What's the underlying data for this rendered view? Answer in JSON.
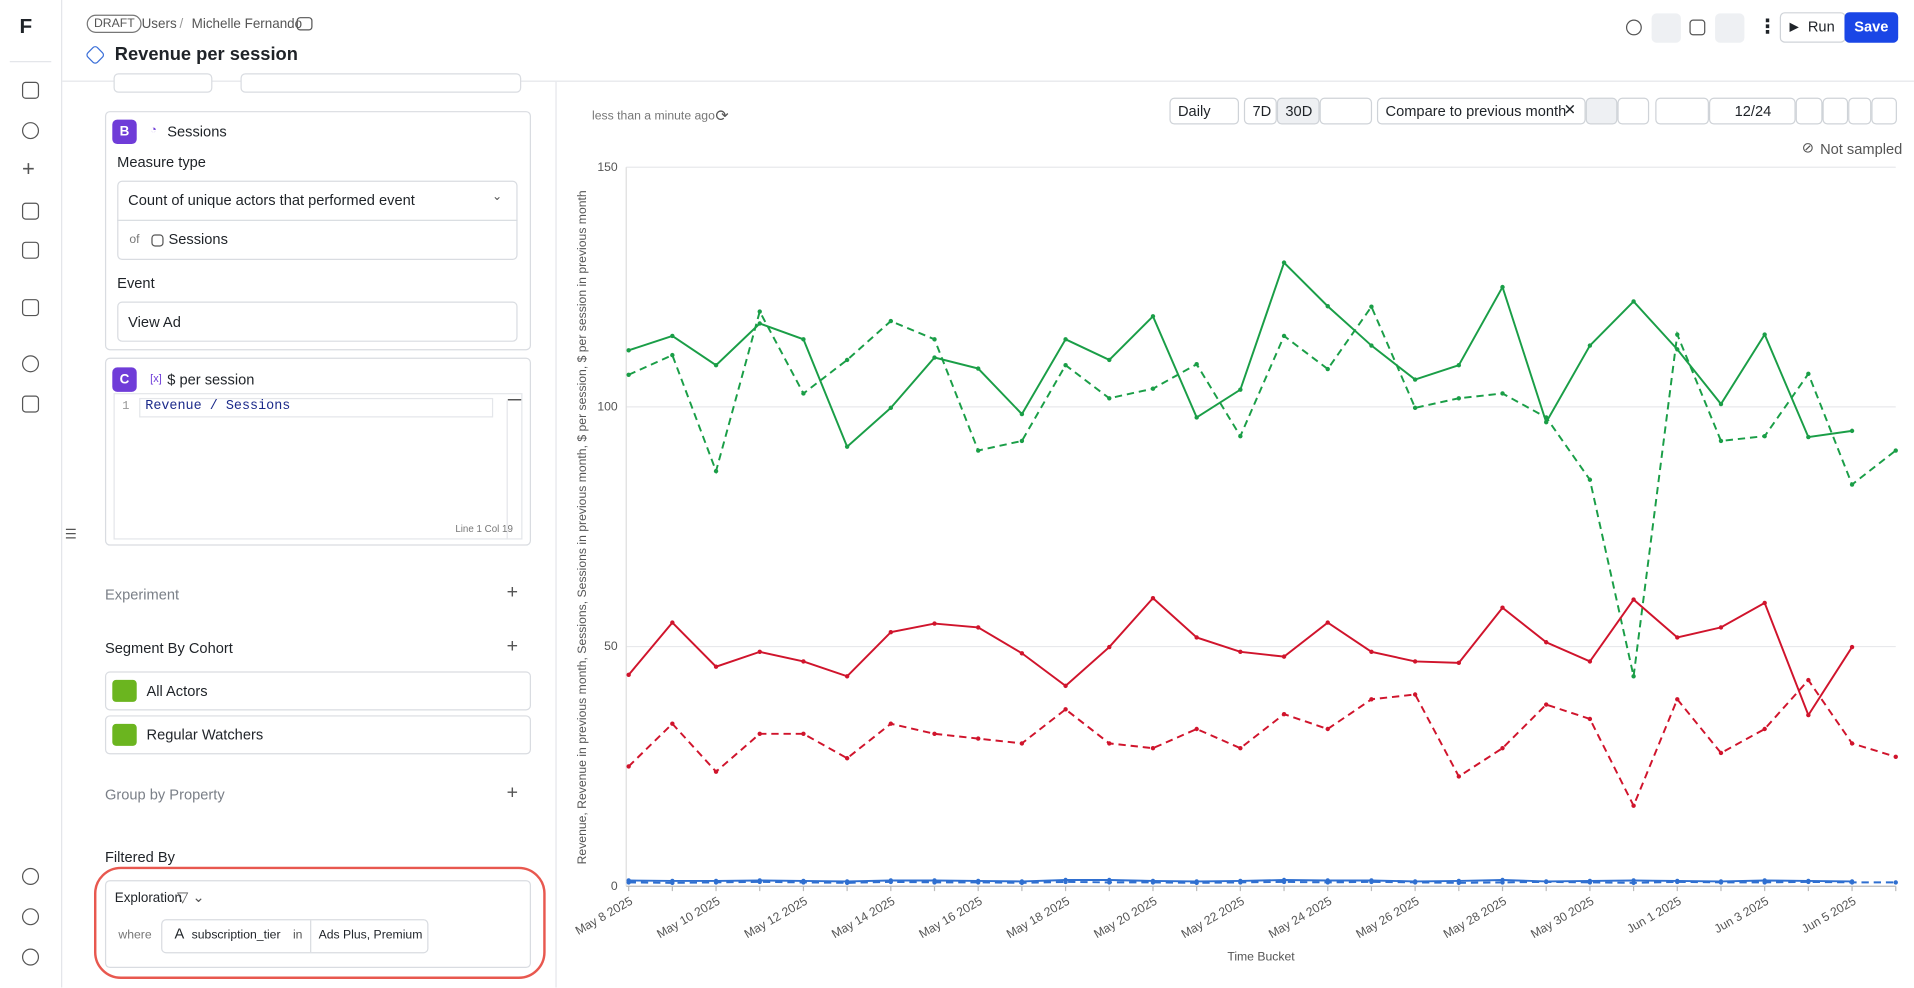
{
  "header": {
    "draft": "DRAFT",
    "breadcrumb": [
      "Users",
      "Michelle Fernando"
    ],
    "title": "Revenue per session",
    "run": "Run",
    "save": "Save"
  },
  "rail": {
    "logo": "F"
  },
  "panel": {
    "measure_b": {
      "letter": "B",
      "name": "Sessions",
      "measure_type_label": "Measure type",
      "measure_type": "Count of unique actors that performed event",
      "of": "of",
      "of_value": "Sessions",
      "event_label": "Event",
      "event": "View Ad"
    },
    "measure_c": {
      "letter": "C",
      "name": "$ per session",
      "line_number": "1",
      "formula": "Revenue / Sessions",
      "cursor": "Line 1 Col 19"
    },
    "experiment": "Experiment",
    "segment": {
      "title": "Segment By Cohort",
      "items": [
        "All Actors",
        "Regular Watchers"
      ]
    },
    "group_by": "Group by Property",
    "filter": {
      "title": "Filtered By",
      "scope": "Exploration",
      "where": "where",
      "property": "subscription_tier",
      "op": "in",
      "values": "Ads Plus, Premium"
    }
  },
  "toolbar": {
    "updated": "less than a minute ago",
    "granularity": "Daily",
    "range_7d": "7D",
    "range_30d": "30D",
    "compare": "Compare to previous month",
    "visible": "12/24",
    "sampling": "Not sampled"
  },
  "chart_data": {
    "type": "line",
    "y_label": "Revenue, Revenue in previous month, Sessions, Sessions in previous month, $ per session, $ per session in previous month",
    "x_label": "Time Bucket",
    "categories": [
      "May 8 2025",
      null,
      "May 10 2025",
      null,
      "May 12 2025",
      null,
      "May 14 2025",
      null,
      "May 16 2025",
      null,
      "May 18 2025",
      null,
      "May 20 2025",
      null,
      "May 22 2025",
      null,
      "May 24 2025",
      null,
      "May 26 2025",
      null,
      "May 28 2025",
      null,
      "May 30 2025",
      null,
      "Jun 1 2025",
      null,
      "Jun 3 2025",
      null,
      "Jun 5 2025",
      null
    ],
    "ylim": [
      0,
      150
    ],
    "yticks": [
      0,
      50,
      100,
      150
    ],
    "grid": true,
    "series": [
      {
        "color": "#1a9e47",
        "line_style": "solid",
        "values": [
          111.8,
          114.8,
          108.7,
          117.4,
          114.1,
          91.7,
          99.8,
          110.3,
          108.0,
          98.5,
          114.1,
          109.8,
          118.9,
          97.8,
          103.6,
          130.1,
          121.0,
          112.8,
          105.7,
          108.7,
          125.0,
          96.8,
          112.8,
          122.0,
          112.0,
          100.6,
          115.1,
          93.7,
          95.0,
          null
        ]
      },
      {
        "color": "#1a9e47",
        "line_style": "dashed",
        "values": [
          106.7,
          110.8,
          86.6,
          119.9,
          102.8,
          109.8,
          117.9,
          114.1,
          90.9,
          92.9,
          108.7,
          101.8,
          103.8,
          108.9,
          93.9,
          114.8,
          107.9,
          120.9,
          99.8,
          101.8,
          102.8,
          97.8,
          84.8,
          43.8,
          115.1,
          92.9,
          93.9,
          106.9,
          83.8,
          90.9
        ]
      },
      {
        "color": "#d0142c",
        "line_style": "solid",
        "values": [
          44.1,
          55.0,
          45.8,
          48.9,
          46.9,
          43.8,
          53.0,
          54.8,
          54.0,
          48.6,
          41.8,
          49.9,
          60.1,
          51.9,
          48.9,
          47.9,
          55.0,
          48.9,
          46.9,
          46.6,
          58.1,
          50.9,
          46.9,
          59.8,
          51.9,
          54.0,
          59.1,
          35.7,
          49.9,
          null
        ]
      },
      {
        "color": "#d0142c",
        "line_style": "dashed",
        "values": [
          25.0,
          33.9,
          23.9,
          31.8,
          31.8,
          26.7,
          33.9,
          31.8,
          30.8,
          29.8,
          36.9,
          29.8,
          28.8,
          32.8,
          28.8,
          35.9,
          32.8,
          39.0,
          40.0,
          22.9,
          28.8,
          37.9,
          34.9,
          16.8,
          39.0,
          27.8,
          32.8,
          43.0,
          29.8,
          27.0
        ]
      },
      {
        "color": "#2f6fd0",
        "line_style": "solid",
        "values": [
          1.2,
          1.1,
          1.1,
          1.2,
          1.1,
          1.0,
          1.2,
          1.2,
          1.1,
          1.0,
          1.3,
          1.3,
          1.1,
          1.0,
          1.1,
          1.3,
          1.2,
          1.2,
          1.0,
          1.1,
          1.3,
          1.0,
          1.1,
          1.2,
          1.1,
          1.0,
          1.2,
          1.1,
          1.0,
          null
        ]
      },
      {
        "color": "#2f6fd0",
        "line_style": "dashed",
        "values": [
          0.8,
          0.7,
          0.8,
          0.9,
          0.8,
          0.7,
          0.9,
          0.8,
          0.8,
          0.7,
          0.9,
          0.8,
          0.8,
          0.7,
          0.8,
          0.9,
          0.8,
          0.9,
          0.8,
          0.7,
          0.8,
          0.9,
          0.8,
          0.7,
          0.9,
          0.8,
          0.8,
          0.9,
          0.8,
          0.8
        ]
      }
    ]
  }
}
